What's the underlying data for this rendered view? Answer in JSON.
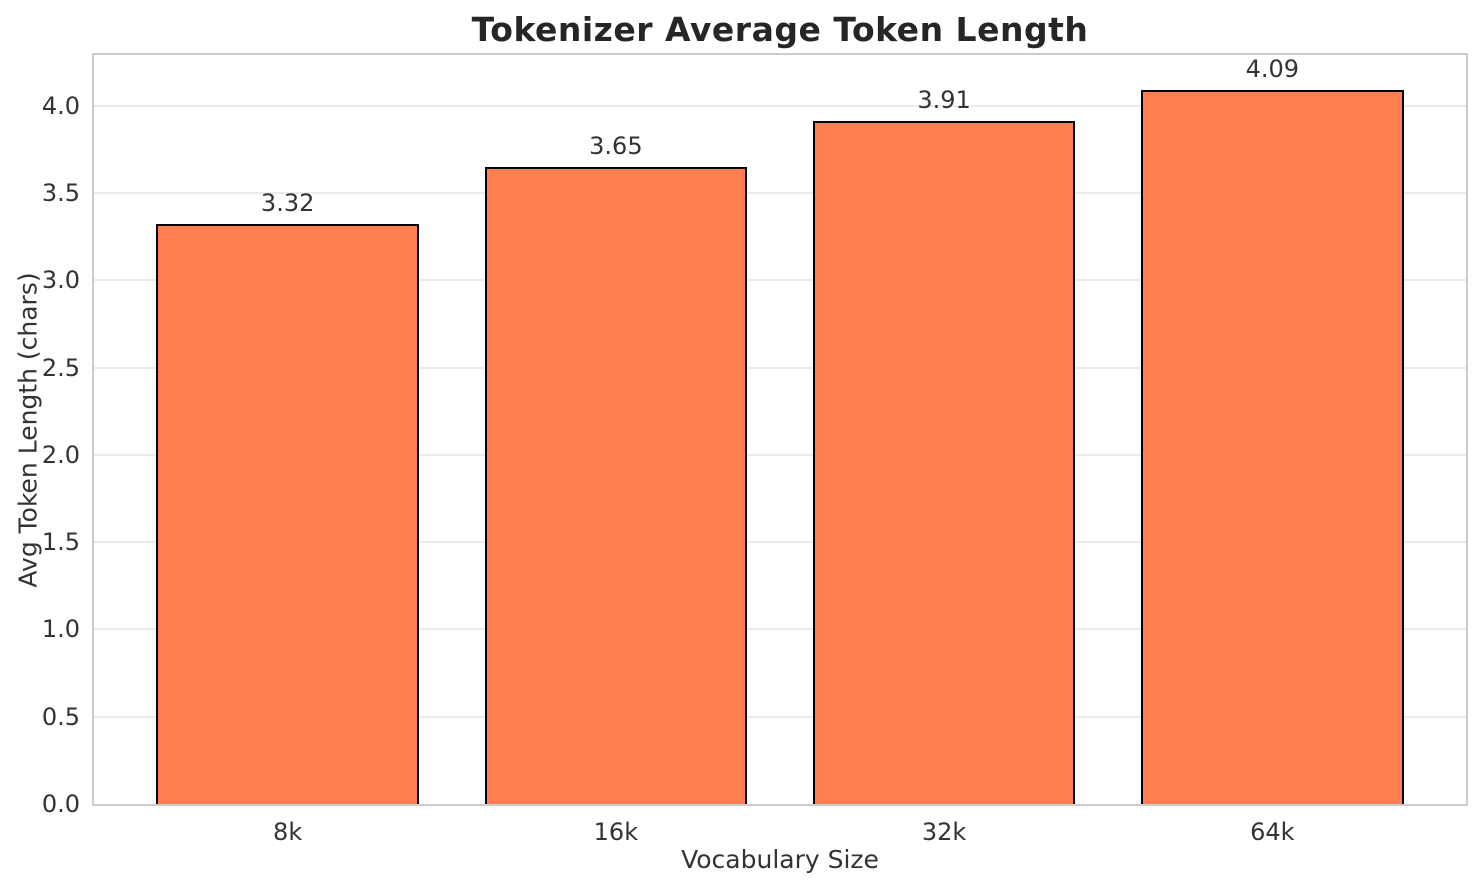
{
  "chart_data": {
    "type": "bar",
    "title": "Tokenizer Average Token Length",
    "xlabel": "Vocabulary Size",
    "ylabel": "Avg Token Length (chars)",
    "categories": [
      "8k",
      "16k",
      "32k",
      "64k"
    ],
    "values": [
      3.32,
      3.65,
      3.91,
      4.09
    ],
    "value_labels": [
      "3.32",
      "3.65",
      "3.91",
      "4.09"
    ],
    "ytick_values": [
      0.0,
      0.5,
      1.0,
      1.5,
      2.0,
      2.5,
      3.0,
      3.5,
      4.0
    ],
    "ytick_labels": [
      "0.0",
      "0.5",
      "1.0",
      "1.5",
      "2.0",
      "2.5",
      "3.0",
      "3.5",
      "4.0"
    ],
    "ylim": [
      0,
      4.29
    ],
    "xlim": [
      -0.59,
      3.59
    ],
    "bar_width_units": 0.8,
    "grid": true,
    "legend": null,
    "bar_color": "#FF7F50",
    "bar_edge_color": "#000000",
    "background_color": "#ffffff"
  }
}
